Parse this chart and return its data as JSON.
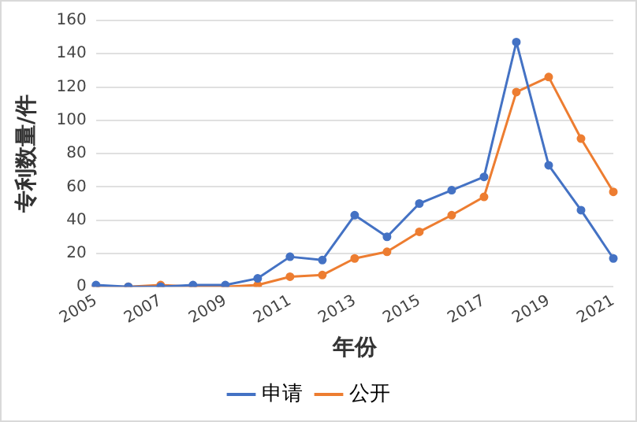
{
  "chart_data": {
    "type": "line",
    "xlabel": "年份",
    "ylabel": "专利数量/件",
    "categories": [
      "2005",
      null,
      "2007",
      null,
      "2009",
      null,
      "2011",
      null,
      "2013",
      null,
      "2015",
      null,
      "2017",
      null,
      "2019",
      null,
      "2021"
    ],
    "series": [
      {
        "name": "申请",
        "color": "#4472c4",
        "values": [
          1,
          0,
          0,
          1,
          1,
          5,
          18,
          16,
          43,
          30,
          50,
          58,
          66,
          147,
          73,
          46,
          17
        ]
      },
      {
        "name": "公开",
        "color": "#ed7d31",
        "values": [
          0,
          0,
          1,
          0,
          0,
          1,
          6,
          7,
          17,
          21,
          33,
          43,
          54,
          117,
          126,
          89,
          57
        ]
      }
    ],
    "ylim": [
      0,
      160
    ],
    "yticks": [
      0,
      20,
      40,
      60,
      80,
      100,
      120,
      140,
      160
    ],
    "grid": "y",
    "legend": "bottom",
    "marker": "circle"
  }
}
